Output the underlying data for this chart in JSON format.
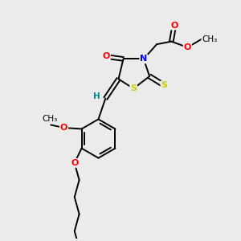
{
  "bg_color": "#ebebeb",
  "bond_color": "#000000",
  "colors": {
    "O": "#ff0000",
    "N": "#0000ff",
    "S": "#cccc00",
    "H": "#008888",
    "C": "#000000"
  }
}
